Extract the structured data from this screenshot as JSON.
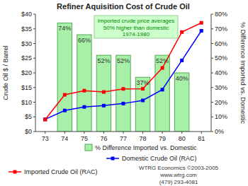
{
  "chart_data": {
    "type": "bar",
    "title": "Refiner Aquisition Cost of Crude Oil",
    "y_label": "Crude Oil $ / Barrel",
    "y2_label": "% Difference Imported vs. Domestic",
    "categories": [
      "73",
      "74",
      "75",
      "76",
      "77",
      "78",
      "79",
      "80",
      "81"
    ],
    "ylim": [
      0,
      40
    ],
    "yticks": [
      {
        "value": 0,
        "label": "$0"
      },
      {
        "value": 5,
        "label": "$5"
      },
      {
        "value": 10,
        "label": "$10"
      },
      {
        "value": 15,
        "label": "$15"
      },
      {
        "value": 20,
        "label": "$20"
      },
      {
        "value": 25,
        "label": "$25"
      },
      {
        "value": 30,
        "label": "$30"
      },
      {
        "value": 35,
        "label": "$35"
      },
      {
        "value": 40,
        "label": "$40"
      }
    ],
    "y2lim": [
      0,
      80
    ],
    "y2ticks": [
      {
        "value": 0,
        "label": "0%"
      },
      {
        "value": 10,
        "label": "10%"
      },
      {
        "value": 20,
        "label": "20%"
      },
      {
        "value": 30,
        "label": "30%"
      },
      {
        "value": 40,
        "label": "40%"
      },
      {
        "value": 50,
        "label": "50%"
      },
      {
        "value": 60,
        "label": "60%"
      },
      {
        "value": 70,
        "label": "70%"
      },
      {
        "value": 80,
        "label": "80%"
      }
    ],
    "grid": false,
    "data_labels": true,
    "series": [
      {
        "name": "% Difference Imported vs. Domestic",
        "type": "bar",
        "axis": "y2",
        "color": "#a8f0a8",
        "values": [
          null,
          74,
          66,
          52,
          52,
          37,
          52,
          40,
          null
        ],
        "value_labels": [
          null,
          "74%",
          "66%",
          "52%",
          "52%",
          "37%",
          "52%",
          "40%",
          null
        ]
      },
      {
        "name": "Domestic Crude Oil (RAC)",
        "type": "line",
        "color": "#0000ff",
        "marker": "square",
        "values": [
          4.17,
          7.18,
          8.39,
          8.84,
          9.55,
          10.61,
          14.27,
          24.23,
          34.33
        ]
      },
      {
        "name": "Imported Crude Oil (RAC)",
        "type": "line",
        "color": "#ff0000",
        "marker": "square",
        "values": [
          4.08,
          12.52,
          13.93,
          13.48,
          14.53,
          14.57,
          21.67,
          33.89,
          37.05
        ]
      }
    ],
    "annotation": [
      "Imported crude price averages",
      "50% higher than domestic",
      "1974-1980"
    ],
    "credits": [
      "WTRG Economics ©2003-2005",
      "www.wtrg.com",
      "(479) 293-4081"
    ]
  }
}
